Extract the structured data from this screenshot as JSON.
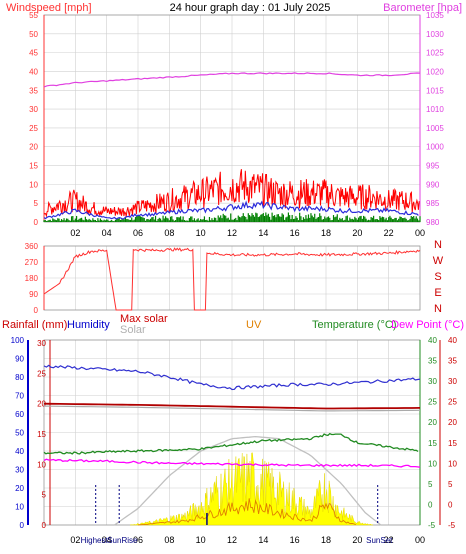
{
  "top": {
    "title": "24 hour graph day : 01 July 2025",
    "left_label": "Windspeed [mph]",
    "right_label": "Barometer [hpa]"
  },
  "bottom_labels": {
    "rainfall": "Rainfall (mm)",
    "humidity": "Humidity",
    "max_solar": "Max solar",
    "solar": "Solar",
    "uv": "UV",
    "temperature": "Temperature (°C)",
    "dewpoint": "Dew Point (°C)",
    "highest": "Highest",
    "sunrise": "SunRise",
    "sunset": "SunSet"
  },
  "colors": {
    "wind_gust": "#ff0000",
    "wind_avg": "#2b2bdb",
    "wind_low": "#008000",
    "barometer": "#e040e0",
    "direction": "#ff3030",
    "humidity": "#3030d0",
    "rain_axis": "#0000cc",
    "max_solar": "#c0c0c0",
    "solar": "#ffff00",
    "uv": "#e08000",
    "temperature": "#228b22",
    "dewpoint": "#ff00ff",
    "rain_line": "#b00000",
    "grid": "#d0d0d0"
  },
  "chart_data": [
    {
      "type": "line",
      "name": "wind-barometer",
      "xlabel": "",
      "ylabel": "Windspeed [mph]",
      "y2label": "Barometer [hpa]",
      "x_ticks": [
        "02",
        "04",
        "06",
        "08",
        "10",
        "12",
        "14",
        "16",
        "18",
        "20",
        "22",
        "00"
      ],
      "ylim": [
        0,
        55
      ],
      "y_ticks": [
        0,
        5,
        10,
        15,
        20,
        25,
        30,
        35,
        40,
        45,
        50,
        55
      ],
      "y2lim": [
        980,
        1035
      ],
      "y2_ticks": [
        980,
        985,
        990,
        995,
        1000,
        1005,
        1010,
        1015,
        1020,
        1025,
        1030,
        1035
      ],
      "wind_gust": [
        [
          0,
          3
        ],
        [
          1,
          5
        ],
        [
          2,
          6
        ],
        [
          3,
          4
        ],
        [
          4,
          3
        ],
        [
          5,
          3
        ],
        [
          6,
          4
        ],
        [
          7,
          5
        ],
        [
          8,
          6
        ],
        [
          9,
          7
        ],
        [
          10,
          8
        ],
        [
          11,
          9
        ],
        [
          12,
          10
        ],
        [
          13,
          10
        ],
        [
          14,
          9
        ],
        [
          15,
          8
        ],
        [
          16,
          8
        ],
        [
          17,
          8
        ],
        [
          18,
          8
        ],
        [
          19,
          7
        ],
        [
          20,
          7
        ],
        [
          21,
          7
        ],
        [
          22,
          6
        ],
        [
          23,
          6
        ],
        [
          24,
          5
        ]
      ],
      "wind_avg": [
        [
          0,
          1
        ],
        [
          1,
          2
        ],
        [
          2,
          3
        ],
        [
          3,
          2
        ],
        [
          4,
          1
        ],
        [
          5,
          1
        ],
        [
          6,
          2
        ],
        [
          7,
          2
        ],
        [
          8,
          2.5
        ],
        [
          9,
          3
        ],
        [
          10,
          3
        ],
        [
          11,
          3.5
        ],
        [
          12,
          4
        ],
        [
          13,
          4.5
        ],
        [
          14,
          4.5
        ],
        [
          15,
          4
        ],
        [
          16,
          3.5
        ],
        [
          17,
          3.5
        ],
        [
          18,
          3.5
        ],
        [
          19,
          3
        ],
        [
          20,
          3
        ],
        [
          21,
          3
        ],
        [
          22,
          3
        ],
        [
          23,
          2.5
        ],
        [
          24,
          2
        ]
      ],
      "wind_low": [
        [
          0,
          0.5
        ],
        [
          2,
          1
        ],
        [
          4,
          0.5
        ],
        [
          6,
          1
        ],
        [
          8,
          1
        ],
        [
          10,
          1
        ],
        [
          12,
          1.5
        ],
        [
          14,
          1.5
        ],
        [
          16,
          1.5
        ],
        [
          18,
          1.5
        ],
        [
          20,
          1
        ],
        [
          22,
          1
        ],
        [
          24,
          1
        ]
      ],
      "barometer": [
        [
          0,
          1016
        ],
        [
          2,
          1017
        ],
        [
          4,
          1017.5
        ],
        [
          6,
          1018
        ],
        [
          8,
          1018.5
        ],
        [
          10,
          1019
        ],
        [
          12,
          1019.5
        ],
        [
          14,
          1019.5
        ],
        [
          16,
          1019.5
        ],
        [
          18,
          1019.5
        ],
        [
          20,
          1019
        ],
        [
          22,
          1019
        ],
        [
          24,
          1019.5
        ]
      ]
    },
    {
      "type": "line",
      "name": "wind-direction",
      "y_ticks": [
        0,
        90,
        180,
        270,
        360
      ],
      "ylim": [
        0,
        360
      ],
      "compass_labels": [
        "N",
        "W",
        "S",
        "E",
        "N"
      ],
      "direction": [
        [
          0,
          90
        ],
        [
          1,
          150
        ],
        [
          2,
          300
        ],
        [
          3,
          330
        ],
        [
          4,
          335
        ],
        [
          4.6,
          0
        ],
        [
          5.6,
          0
        ],
        [
          5.7,
          340
        ],
        [
          7,
          335
        ],
        [
          8,
          340
        ],
        [
          9.5,
          340
        ],
        [
          9.6,
          0
        ],
        [
          10.3,
          0
        ],
        [
          10.4,
          320
        ],
        [
          12,
          310
        ],
        [
          14,
          310
        ],
        [
          16,
          315
        ],
        [
          18,
          310
        ],
        [
          20,
          315
        ],
        [
          22,
          320
        ],
        [
          24,
          335
        ]
      ]
    },
    {
      "type": "line",
      "name": "rain-humidity-solar-temp",
      "x_ticks": [
        "02",
        "04",
        "06",
        "08",
        "10",
        "12",
        "14",
        "16",
        "18",
        "20",
        "22",
        "00"
      ],
      "humidity_ticks": [
        0,
        10,
        20,
        30,
        40,
        50,
        60,
        70,
        80,
        90,
        100
      ],
      "rain_ticks": [
        0,
        5,
        10,
        15,
        20,
        25,
        30
      ],
      "temp_ticks": [
        -5,
        0,
        5,
        10,
        15,
        20,
        25,
        30,
        35,
        40
      ],
      "humidity": [
        [
          0,
          86
        ],
        [
          2,
          85
        ],
        [
          4,
          84
        ],
        [
          6,
          83
        ],
        [
          8,
          80
        ],
        [
          10,
          76
        ],
        [
          12,
          74
        ],
        [
          14,
          75
        ],
        [
          16,
          76
        ],
        [
          18,
          76
        ],
        [
          20,
          77
        ],
        [
          22,
          78
        ],
        [
          24,
          79
        ]
      ],
      "rain": [
        [
          0,
          20
        ],
        [
          6,
          19.8
        ],
        [
          12,
          19.5
        ],
        [
          18,
          19.2
        ],
        [
          24,
          19.3
        ]
      ],
      "temperature": [
        [
          0,
          12.5
        ],
        [
          2,
          12.5
        ],
        [
          4,
          12.8
        ],
        [
          6,
          13
        ],
        [
          8,
          13.2
        ],
        [
          10,
          13.5
        ],
        [
          12,
          14.5
        ],
        [
          14,
          15.5
        ],
        [
          16,
          15.8
        ],
        [
          17,
          16
        ],
        [
          18,
          17
        ],
        [
          19,
          17
        ],
        [
          20,
          15
        ],
        [
          22,
          14
        ],
        [
          24,
          13
        ]
      ],
      "dewpoint": [
        [
          0,
          10.8
        ],
        [
          4,
          10.5
        ],
        [
          8,
          10
        ],
        [
          12,
          9.8
        ],
        [
          16,
          9.5
        ],
        [
          20,
          9.5
        ],
        [
          24,
          9.3
        ]
      ],
      "max_solar": [
        [
          4.5,
          0
        ],
        [
          6,
          4
        ],
        [
          8,
          12
        ],
        [
          10,
          18
        ],
        [
          12,
          21
        ],
        [
          13.5,
          21.5
        ],
        [
          15,
          21
        ],
        [
          17,
          17
        ],
        [
          19,
          10
        ],
        [
          20.5,
          3
        ],
        [
          21.5,
          0
        ]
      ],
      "solar_peak": [
        [
          5.5,
          0
        ],
        [
          7,
          1
        ],
        [
          9,
          3
        ],
        [
          10,
          6
        ],
        [
          11,
          11
        ],
        [
          12,
          14
        ],
        [
          13,
          16
        ],
        [
          14,
          14
        ],
        [
          15,
          11
        ],
        [
          16,
          8
        ],
        [
          17,
          4
        ],
        [
          18,
          13
        ],
        [
          18.5,
          7
        ],
        [
          19,
          4
        ],
        [
          20,
          1
        ],
        [
          21,
          0
        ]
      ],
      "uv_line": [
        [
          6,
          0
        ],
        [
          9,
          1
        ],
        [
          11,
          3
        ],
        [
          13,
          5
        ],
        [
          15,
          3
        ],
        [
          17,
          1
        ],
        [
          18,
          5
        ],
        [
          19,
          1
        ],
        [
          20,
          0
        ]
      ]
    }
  ]
}
